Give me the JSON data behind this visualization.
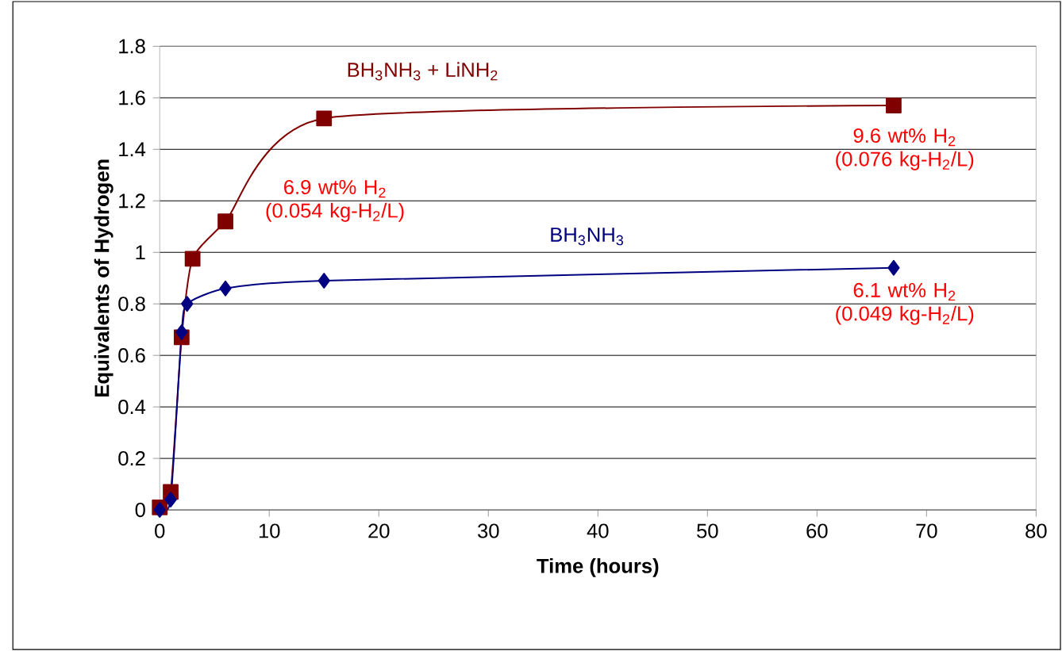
{
  "chart_data": {
    "type": "line",
    "xlabel": "Time (hours)",
    "ylabel": "Equivalents of Hydrogen",
    "xlim": [
      0,
      80
    ],
    "ylim": [
      0,
      1.8
    ],
    "xticks": [
      0,
      10,
      20,
      30,
      40,
      50,
      60,
      70,
      80
    ],
    "yticks": [
      0,
      0.2,
      0.4,
      0.6,
      0.8,
      1,
      1.2,
      1.4,
      1.6,
      1.8
    ],
    "grid": "y",
    "line_style": "solid",
    "series": [
      {
        "name": "BH$_{3}$NH$_{3}$ + LiNH$_{2}$",
        "color": "#800000",
        "marker": "square",
        "x": [
          0,
          1,
          2,
          3,
          6,
          15,
          67
        ],
        "values": [
          0.01,
          0.07,
          0.67,
          0.975,
          1.12,
          1.52,
          1.57
        ]
      },
      {
        "name": "BH$_{3}$NH$_{3}$",
        "color": "#000080",
        "marker": "diamond",
        "x": [
          0,
          1,
          2,
          2.5,
          6,
          15,
          67
        ],
        "values": [
          0,
          0.04,
          0.69,
          0.8,
          0.86,
          0.89,
          0.94
        ]
      }
    ],
    "annotations": [
      "6.9 wt% H$_{2}$ (0.054 kg-H$_{2}$/L)",
      "9.6 wt% H$_{2}$ (0.076 kg-H$_{2}$/L)",
      "6.1 wt% H$_{2}$ (0.049 kg-H$_{2}$/L)"
    ]
  }
}
